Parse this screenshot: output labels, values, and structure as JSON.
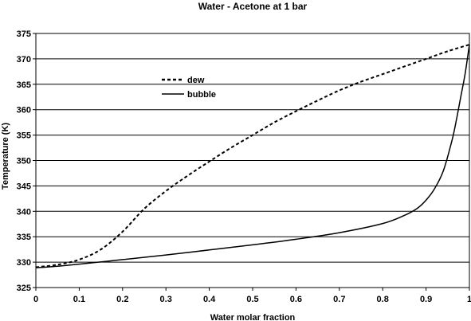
{
  "chart_data": {
    "type": "line",
    "title": "Water - Acetone at 1 bar",
    "xlabel": "Water molar fraction",
    "ylabel": "Temperature (K)",
    "xlim": [
      0,
      1
    ],
    "ylim": [
      325,
      375
    ],
    "x_ticks": [
      "0",
      "0.1",
      "0.2",
      "0.3",
      "0.4",
      "0.5",
      "0.6",
      "0.7",
      "0.8",
      "0.9",
      "1"
    ],
    "y_ticks": [
      "325",
      "330",
      "335",
      "340",
      "345",
      "350",
      "355",
      "360",
      "365",
      "370",
      "375"
    ],
    "grid": "horizontal",
    "legend_position": "upper-left-inside",
    "series": [
      {
        "name": "dew",
        "style": "dashed",
        "color": "#000000",
        "x": [
          0,
          0.05,
          0.1,
          0.15,
          0.2,
          0.25,
          0.3,
          0.35,
          0.4,
          0.45,
          0.5,
          0.55,
          0.6,
          0.65,
          0.7,
          0.75,
          0.8,
          0.85,
          0.9,
          0.95,
          1.0
        ],
        "y": [
          329.0,
          329.5,
          330.5,
          332.5,
          336.0,
          340.5,
          344.0,
          347.0,
          349.8,
          352.5,
          355.0,
          357.5,
          359.7,
          361.8,
          363.8,
          365.5,
          367.0,
          368.5,
          370.0,
          371.5,
          372.8
        ]
      },
      {
        "name": "bubble",
        "style": "solid",
        "color": "#000000",
        "x": [
          0,
          0.05,
          0.1,
          0.2,
          0.3,
          0.4,
          0.5,
          0.6,
          0.7,
          0.8,
          0.85,
          0.88,
          0.9,
          0.92,
          0.94,
          0.96,
          0.97,
          0.98,
          0.99,
          1.0
        ],
        "y": [
          328.9,
          329.2,
          329.6,
          330.5,
          331.4,
          332.4,
          333.4,
          334.5,
          335.8,
          337.6,
          339.2,
          340.6,
          342.2,
          344.5,
          348.0,
          354.0,
          358.0,
          362.5,
          367.0,
          372.8
        ]
      }
    ]
  }
}
